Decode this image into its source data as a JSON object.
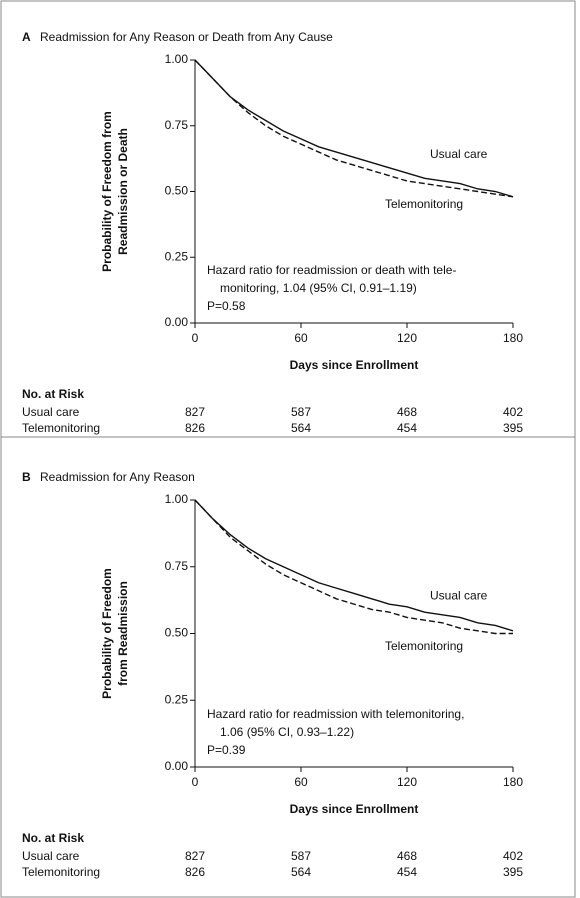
{
  "chart_data": [
    {
      "type": "line",
      "panel": "A",
      "title": "Readmission for Any Reason or Death from Any Cause",
      "ylabel": [
        "Probability of Freedom from",
        "Readmission or Death"
      ],
      "xlabel": "Days since Enrollment",
      "x": [
        0,
        10,
        20,
        30,
        40,
        50,
        60,
        70,
        80,
        90,
        100,
        110,
        120,
        130,
        140,
        150,
        160,
        170,
        180
      ],
      "xlim": [
        0,
        180
      ],
      "xticks": [
        0,
        60,
        120,
        180
      ],
      "ylim": [
        0,
        1
      ],
      "yticks": [
        {
          "value": 0,
          "label": "0.00"
        },
        {
          "value": 0.25,
          "label": "0.25"
        },
        {
          "value": 0.5,
          "label": "0.50"
        },
        {
          "value": 0.75,
          "label": "0.75"
        },
        {
          "value": 1,
          "label": "1.00"
        }
      ],
      "series": [
        {
          "name": "Usual care",
          "color": "#111111",
          "dash": "solid",
          "values": [
            1.0,
            0.93,
            0.86,
            0.81,
            0.77,
            0.73,
            0.7,
            0.67,
            0.65,
            0.63,
            0.61,
            0.59,
            0.57,
            0.55,
            0.54,
            0.53,
            0.51,
            0.5,
            0.48
          ],
          "at_risk": [
            827,
            587,
            468,
            402
          ]
        },
        {
          "name": "Telemonitoring",
          "color": "#111111",
          "dash": "dashed",
          "values": [
            1.0,
            0.93,
            0.86,
            0.8,
            0.75,
            0.71,
            0.68,
            0.65,
            0.62,
            0.6,
            0.58,
            0.56,
            0.54,
            0.53,
            0.52,
            0.51,
            0.5,
            0.49,
            0.48
          ],
          "at_risk": [
            826,
            564,
            454,
            395
          ]
        }
      ],
      "annotation": [
        "Hazard ratio for readmission or death with tele-",
        "monitoring, 1.04 (95% CI, 0.91–1.19)",
        "P=0.58"
      ],
      "risk_title": "No. at Risk"
    },
    {
      "type": "line",
      "panel": "B",
      "title": "Readmission for Any Reason",
      "ylabel": [
        "Probability of Freedom",
        "from Readmission"
      ],
      "xlabel": "Days since Enrollment",
      "x": [
        0,
        10,
        20,
        30,
        40,
        50,
        60,
        70,
        80,
        90,
        100,
        110,
        120,
        130,
        140,
        150,
        160,
        170,
        180
      ],
      "xlim": [
        0,
        180
      ],
      "xticks": [
        0,
        60,
        120,
        180
      ],
      "ylim": [
        0,
        1
      ],
      "yticks": [
        {
          "value": 0,
          "label": "0.00"
        },
        {
          "value": 0.25,
          "label": "0.25"
        },
        {
          "value": 0.5,
          "label": "0.50"
        },
        {
          "value": 0.75,
          "label": "0.75"
        },
        {
          "value": 1,
          "label": "1.00"
        }
      ],
      "series": [
        {
          "name": "Usual care",
          "color": "#111111",
          "dash": "solid",
          "values": [
            1.0,
            0.93,
            0.87,
            0.82,
            0.78,
            0.75,
            0.72,
            0.69,
            0.67,
            0.65,
            0.63,
            0.61,
            0.6,
            0.58,
            0.57,
            0.56,
            0.54,
            0.53,
            0.51
          ],
          "at_risk": [
            827,
            587,
            468,
            402
          ]
        },
        {
          "name": "Telemonitoring",
          "color": "#111111",
          "dash": "dashed",
          "values": [
            1.0,
            0.93,
            0.86,
            0.81,
            0.76,
            0.72,
            0.69,
            0.66,
            0.63,
            0.61,
            0.59,
            0.58,
            0.56,
            0.55,
            0.54,
            0.52,
            0.51,
            0.5,
            0.5
          ],
          "at_risk": [
            826,
            564,
            454,
            395
          ]
        }
      ],
      "annotation": [
        "Hazard ratio for readmission with telemonitoring,",
        "1.06 (95% CI, 0.93–1.22)",
        "P=0.39"
      ],
      "risk_title": "No. at Risk"
    }
  ]
}
